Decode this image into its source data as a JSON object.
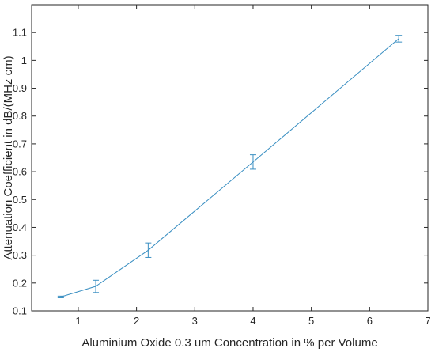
{
  "chart_data": {
    "type": "line",
    "xlabel": "Aluminium Oxide 0.3 um Concentration in % per Volume",
    "ylabel": "Attenuation Coefficient in dB/(MHz cm)",
    "xlim": [
      0.2,
      7
    ],
    "ylim": [
      0.1,
      1.2
    ],
    "xticks": [
      1,
      2,
      3,
      4,
      5,
      6,
      7
    ],
    "yticks": [
      0.1,
      0.2,
      0.3,
      0.4,
      0.5,
      0.6,
      0.7,
      0.8,
      0.9,
      1,
      1.1
    ],
    "grid": false,
    "series": [
      {
        "color": "#3a8fc2",
        "x": [
          0.7,
          1.3,
          2.2,
          4.0,
          6.5
        ],
        "y": [
          0.15,
          0.188,
          0.318,
          0.635,
          1.078
        ],
        "err": [
          0.003,
          0.022,
          0.026,
          0.026,
          0.012
        ]
      }
    ]
  }
}
